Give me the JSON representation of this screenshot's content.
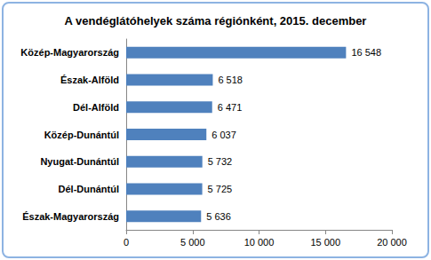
{
  "chart_data": {
    "type": "bar",
    "orientation": "horizontal",
    "title": "A vendéglátóhelyek száma régiónként, 2015. december",
    "categories": [
      "Közép-Magyarország",
      "Észak-Alföld",
      "Dél-Alföld",
      "Közép-Dunántúl",
      "Nyugat-Dunántúl",
      "Dél-Dunántúl",
      "Észak-Magyarország"
    ],
    "values": [
      16548,
      6518,
      6471,
      6037,
      5732,
      5725,
      5636
    ],
    "value_labels": [
      "16 548",
      "6 518",
      "6 471",
      "6 037",
      "5 732",
      "5 725",
      "5 636"
    ],
    "color": "#4f81bd",
    "data_labels": true,
    "xlim": [
      0,
      20000
    ],
    "xticks": [
      0,
      {
        "value": 5000,
        "label": "5 000"
      },
      {
        "value": 10000,
        "label": "10 000"
      },
      {
        "value": 15000,
        "label": "15 000"
      },
      {
        "value": 20000,
        "label": "20 000"
      }
    ],
    "grid": false
  }
}
